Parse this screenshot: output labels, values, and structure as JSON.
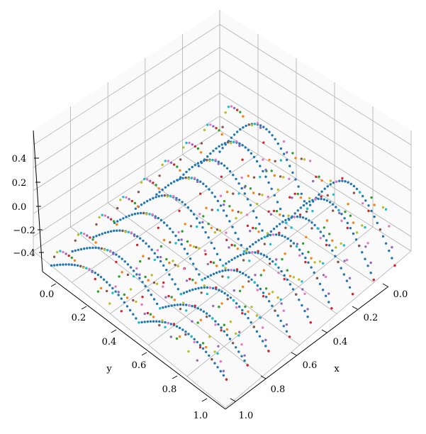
{
  "chart_data": {
    "type": "scatter",
    "subtype": "3d-scatter",
    "title": "",
    "xlabel": "x",
    "ylabel": "y",
    "zlabel": "",
    "xlim": [
      0.0,
      1.0
    ],
    "ylim": [
      0.0,
      1.0
    ],
    "zlim": [
      -0.5,
      0.5
    ],
    "xticks": [
      "0.0",
      "0.2",
      "0.4",
      "0.6",
      "0.8",
      "1.0"
    ],
    "yticks": [
      "0.0",
      "0.2",
      "0.4",
      "0.6",
      "0.8",
      "1.0"
    ],
    "zticks": [
      "−0.4",
      "−0.2",
      "0.0",
      "0.2",
      "0.4"
    ],
    "grid": true,
    "legend": "none",
    "view": {
      "elevation": 40,
      "azimuth": 45
    },
    "point_rule": "z = 0.5 * sin(pi * x * k) * cos(pi * y * k) sampled on grid; k = 1..9 per series",
    "series": [
      {
        "color": "#1f77b4",
        "k": 1
      },
      {
        "color": "#ff7f0e",
        "k": 2
      },
      {
        "color": "#2ca02c",
        "k": 3
      },
      {
        "color": "#d62728",
        "k": 4
      },
      {
        "color": "#9467bd",
        "k": 5
      },
      {
        "color": "#e377c2",
        "k": 6
      },
      {
        "color": "#17becf",
        "k": 7
      },
      {
        "color": "#bcbd22",
        "k": 8
      },
      {
        "color": "#8c564b",
        "k": 9
      }
    ]
  }
}
